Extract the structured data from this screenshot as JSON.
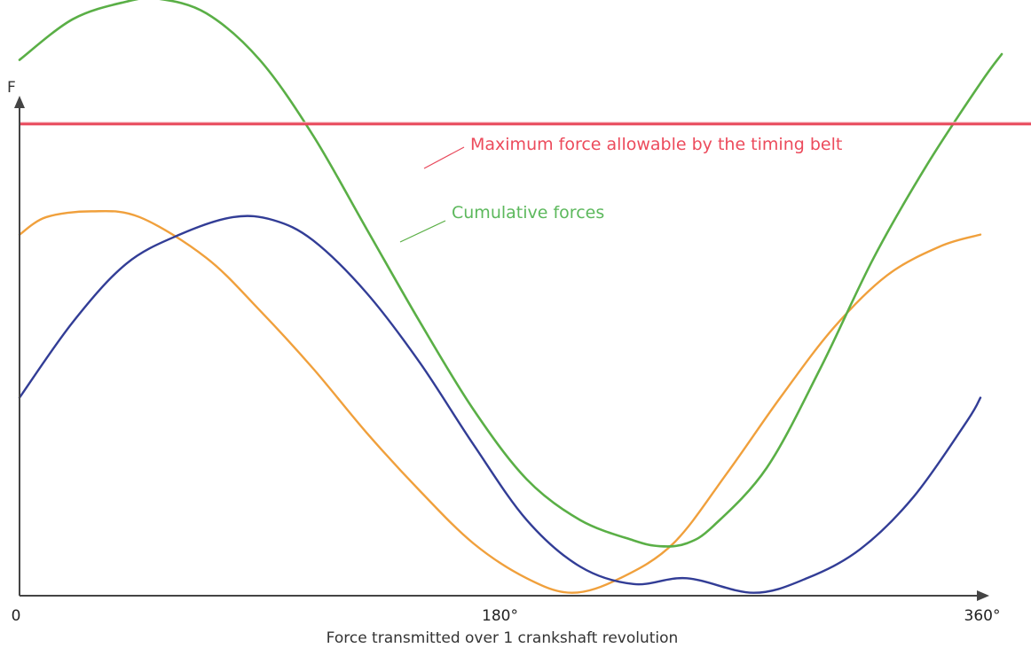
{
  "chart_data": {
    "type": "line",
    "title": "",
    "xlabel": "Force transmitted over 1 crankshaft revolution",
    "ylabel": "F",
    "xlim": [
      0,
      360
    ],
    "ylim": [
      0,
      10
    ],
    "x_ticks": [
      {
        "value": 0,
        "label": "0"
      },
      {
        "value": 180,
        "label": "180°"
      },
      {
        "value": 360,
        "label": "360°"
      }
    ],
    "grid": false,
    "legend": "none",
    "threshold": {
      "value": 8.1,
      "label": "Maximum force allowable by the timing belt",
      "color": "#e8475a"
    },
    "series": [
      {
        "name": "Cumulative forces",
        "color": "#5aaf46",
        "x": [
          0,
          20,
          40,
          52,
          70,
          90,
          110,
          130,
          150,
          170,
          190,
          210,
          230,
          240,
          250,
          260,
          280,
          300,
          320,
          340,
          360,
          368
        ],
        "y": [
          9.2,
          9.9,
          10.2,
          10.25,
          10.0,
          9.2,
          7.9,
          6.3,
          4.7,
          3.2,
          2.0,
          1.3,
          0.95,
          0.85,
          0.9,
          1.2,
          2.2,
          3.9,
          5.8,
          7.4,
          8.8,
          9.3
        ]
      },
      {
        "color": "#f0a03c",
        "x": [
          0,
          10,
          27,
          45,
          70,
          90,
          110,
          130,
          150,
          170,
          190,
          207,
          225,
          245,
          265,
          285,
          305,
          325,
          345,
          360
        ],
        "y": [
          6.2,
          6.5,
          6.6,
          6.5,
          5.8,
          4.9,
          3.9,
          2.8,
          1.8,
          0.9,
          0.3,
          0.05,
          0.3,
          0.9,
          2.1,
          3.4,
          4.6,
          5.5,
          6.0,
          6.2
        ]
      },
      {
        "color": "#323d96",
        "x": [
          0,
          20,
          40,
          60,
          80,
          95,
          110,
          130,
          150,
          170,
          190,
          210,
          230,
          250,
          275,
          295,
          315,
          335,
          355,
          360
        ],
        "y": [
          3.4,
          4.7,
          5.7,
          6.2,
          6.5,
          6.45,
          6.1,
          5.2,
          4.0,
          2.6,
          1.3,
          0.5,
          0.2,
          0.3,
          0.05,
          0.3,
          0.8,
          1.7,
          3.0,
          3.4
        ]
      }
    ]
  }
}
